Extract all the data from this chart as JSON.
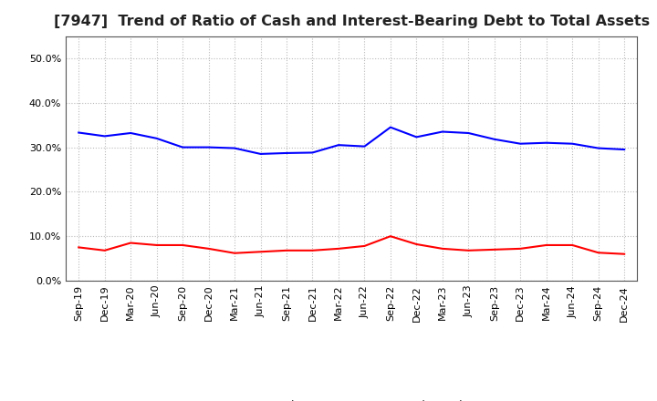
{
  "title": "[7947]  Trend of Ratio of Cash and Interest-Bearing Debt to Total Assets",
  "x_labels": [
    "Sep-19",
    "Dec-19",
    "Mar-20",
    "Jun-20",
    "Sep-20",
    "Dec-20",
    "Mar-21",
    "Jun-21",
    "Sep-21",
    "Dec-21",
    "Mar-22",
    "Jun-22",
    "Sep-22",
    "Dec-22",
    "Mar-23",
    "Jun-23",
    "Sep-23",
    "Dec-23",
    "Mar-24",
    "Jun-24",
    "Sep-24",
    "Dec-24"
  ],
  "cash": [
    0.075,
    0.068,
    0.085,
    0.08,
    0.08,
    0.072,
    0.062,
    0.065,
    0.068,
    0.068,
    0.072,
    0.078,
    0.1,
    0.082,
    0.072,
    0.068,
    0.07,
    0.072,
    0.08,
    0.08,
    0.063,
    0.06
  ],
  "interest_bearing_debt": [
    0.333,
    0.325,
    0.332,
    0.32,
    0.3,
    0.3,
    0.298,
    0.285,
    0.287,
    0.288,
    0.305,
    0.302,
    0.345,
    0.323,
    0.335,
    0.332,
    0.318,
    0.308,
    0.31,
    0.308,
    0.298,
    0.295
  ],
  "cash_color": "#FF0000",
  "debt_color": "#0000FF",
  "ylim": [
    0.0,
    0.55
  ],
  "yticks": [
    0.0,
    0.1,
    0.2,
    0.3,
    0.4,
    0.5
  ],
  "background_color": "#FFFFFF",
  "grid_color": "#BBBBBB",
  "legend_cash": "Cash",
  "legend_debt": "Interest-Bearing Debt",
  "title_fontsize": 11.5,
  "tick_fontsize": 8,
  "legend_fontsize": 9
}
